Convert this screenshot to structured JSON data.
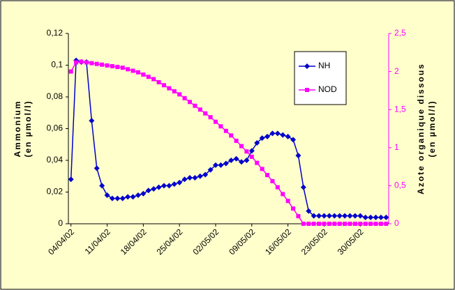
{
  "chart_data": {
    "type": "line",
    "categories": [
      "04/04/02",
      null,
      null,
      null,
      null,
      null,
      null,
      "11/04/02",
      null,
      null,
      null,
      null,
      null,
      null,
      "18/04/02",
      null,
      null,
      null,
      null,
      null,
      null,
      "25/04/02",
      null,
      null,
      null,
      null,
      null,
      null,
      "02/05/02",
      null,
      null,
      null,
      null,
      null,
      null,
      "09/05/02",
      null,
      null,
      null,
      null,
      null,
      null,
      "16/05/02",
      null,
      null,
      null,
      null,
      null,
      null,
      "23/05/02",
      null,
      null,
      null,
      null,
      null,
      null,
      "30/05/02",
      null,
      null,
      null,
      null,
      null
    ],
    "series": [
      {
        "name": "NH",
        "color": "#0000cc",
        "marker": "diamond",
        "values": [
          0.028,
          0.103,
          0.102,
          0.102,
          0.065,
          0.035,
          0.024,
          0.018,
          0.016,
          0.016,
          0.016,
          0.017,
          0.017,
          0.018,
          0.019,
          0.021,
          0.022,
          0.023,
          0.024,
          0.024,
          0.025,
          0.026,
          0.028,
          0.029,
          0.029,
          0.03,
          0.031,
          0.034,
          0.037,
          0.037,
          0.038,
          0.04,
          0.041,
          0.039,
          0.04,
          0.046,
          0.051,
          0.054,
          0.055,
          0.057,
          0.057,
          0.056,
          0.055,
          0.053,
          0.043,
          0.023,
          0.008,
          0.005,
          0.005,
          0.005,
          0.005,
          0.005,
          0.005,
          0.005,
          0.005,
          0.005,
          0.005,
          0.004,
          0.004,
          0.004,
          0.004,
          0.004
        ]
      },
      {
        "name": "NOD",
        "color": "#ff00ff",
        "marker": "square",
        "axis": "y2",
        "values": [
          2.0,
          2.12,
          2.13,
          2.12,
          2.11,
          2.1,
          2.09,
          2.08,
          2.07,
          2.06,
          2.05,
          2.03,
          2.01,
          1.99,
          1.96,
          1.93,
          1.9,
          1.86,
          1.82,
          1.78,
          1.74,
          1.7,
          1.65,
          1.6,
          1.55,
          1.5,
          1.45,
          1.4,
          1.34,
          1.28,
          1.22,
          1.16,
          1.09,
          1.02,
          0.95,
          0.88,
          0.8,
          0.72,
          0.64,
          0.56,
          0.48,
          0.39,
          0.3,
          0.2,
          0.1,
          0,
          0,
          0,
          0,
          0,
          0,
          0,
          0,
          0,
          0,
          0,
          0,
          0,
          0,
          0,
          0,
          0
        ]
      }
    ],
    "ylabel": [
      "Ammonium",
      "(en µmol/l)"
    ],
    "y2label": [
      "Azote organique dissous",
      "(en µmol/l)"
    ],
    "ylim": [
      0,
      0.12
    ],
    "yticks": [
      0,
      {
        "value": 0.02,
        "label": "0,02"
      },
      {
        "value": 0.04,
        "label": "0,04"
      },
      {
        "value": 0.06,
        "label": "0,06"
      },
      {
        "value": 0.08,
        "label": "0,08"
      },
      {
        "value": 0.1,
        "label": "0,1"
      },
      {
        "value": 0.12,
        "label": "0,12"
      }
    ],
    "y2lim": [
      0,
      2.5
    ],
    "y2ticks": [
      0,
      {
        "value": 0.5,
        "label": "0,5"
      },
      1,
      {
        "value": 1.5,
        "label": "1,5"
      },
      2,
      {
        "value": 2.5,
        "label": "2,5"
      }
    ],
    "y2color": "#ff00ff",
    "legend": "upper right",
    "grid": false
  }
}
